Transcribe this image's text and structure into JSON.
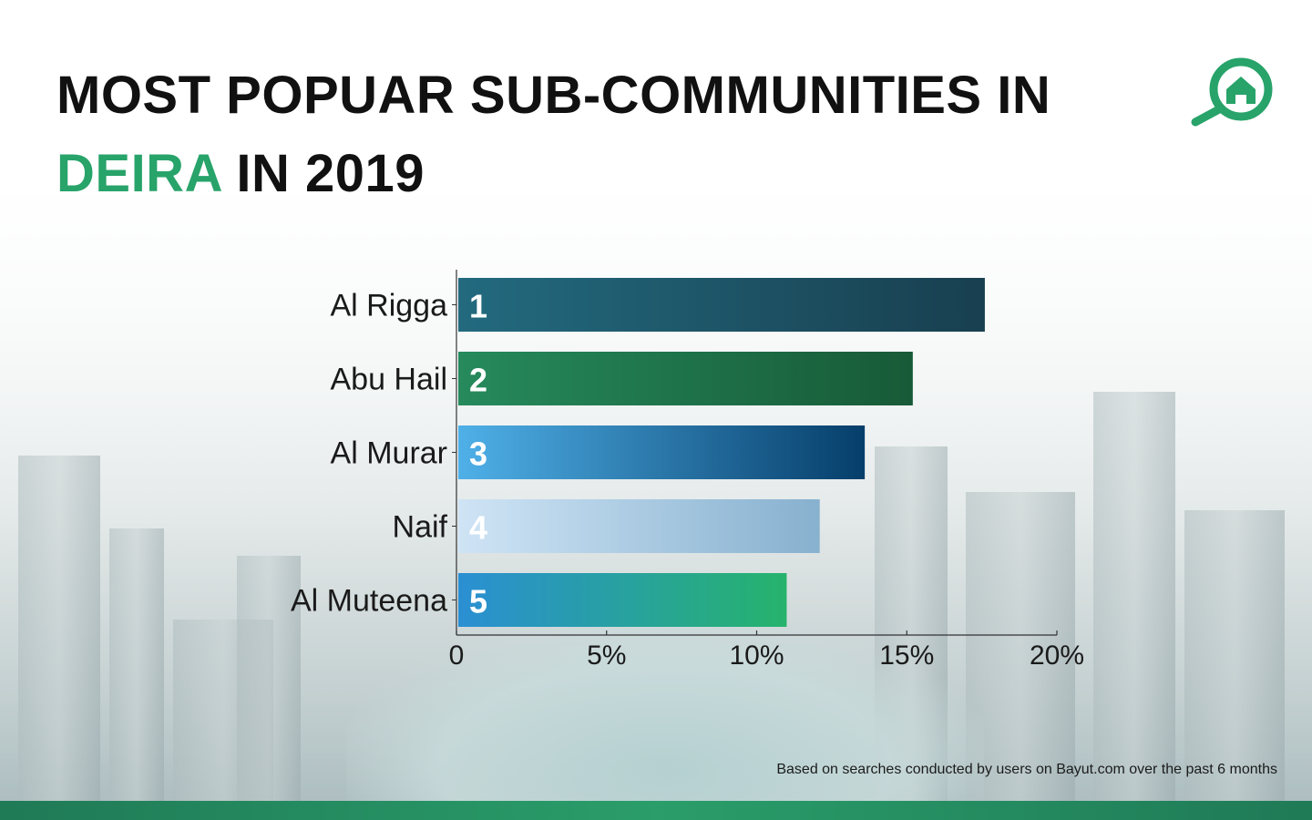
{
  "title": {
    "line1": "MOST POPUAR SUB-COMMUNITIES IN",
    "highlight": "DEIRA",
    "line2_rest": " IN 2019"
  },
  "colors": {
    "accent": "#28a36a",
    "text": "#111111",
    "footer": "#1f7a56"
  },
  "logo": {
    "icon": "house-magnifier-icon"
  },
  "chart_data": {
    "type": "bar",
    "orientation": "horizontal",
    "categories": [
      "Al Rigga",
      "Abu Hail",
      "Al Murar",
      "Naif",
      "Al Muteena"
    ],
    "values": [
      17.6,
      15.2,
      13.6,
      12.1,
      11.0
    ],
    "ranks": [
      "1",
      "2",
      "3",
      "4",
      "5"
    ],
    "xlim": [
      0,
      20
    ],
    "xticks": [
      0,
      5,
      10,
      15,
      20
    ],
    "xtick_labels": [
      "0",
      "5%",
      "10%",
      "15%",
      "20%"
    ],
    "bar_colors": [
      [
        "#236a7f",
        "#183f4f"
      ],
      [
        "#268a5c",
        "#175a37"
      ],
      [
        "#4fb0e8",
        "#063e6a"
      ],
      [
        "#cfe4f5",
        "#87b1cf"
      ],
      [
        "#2a8fd3",
        "#26b36c"
      ]
    ],
    "grid": false,
    "legend": "none"
  },
  "footnote": "Based on searches conducted by users on Bayut.com over the past 6 months"
}
